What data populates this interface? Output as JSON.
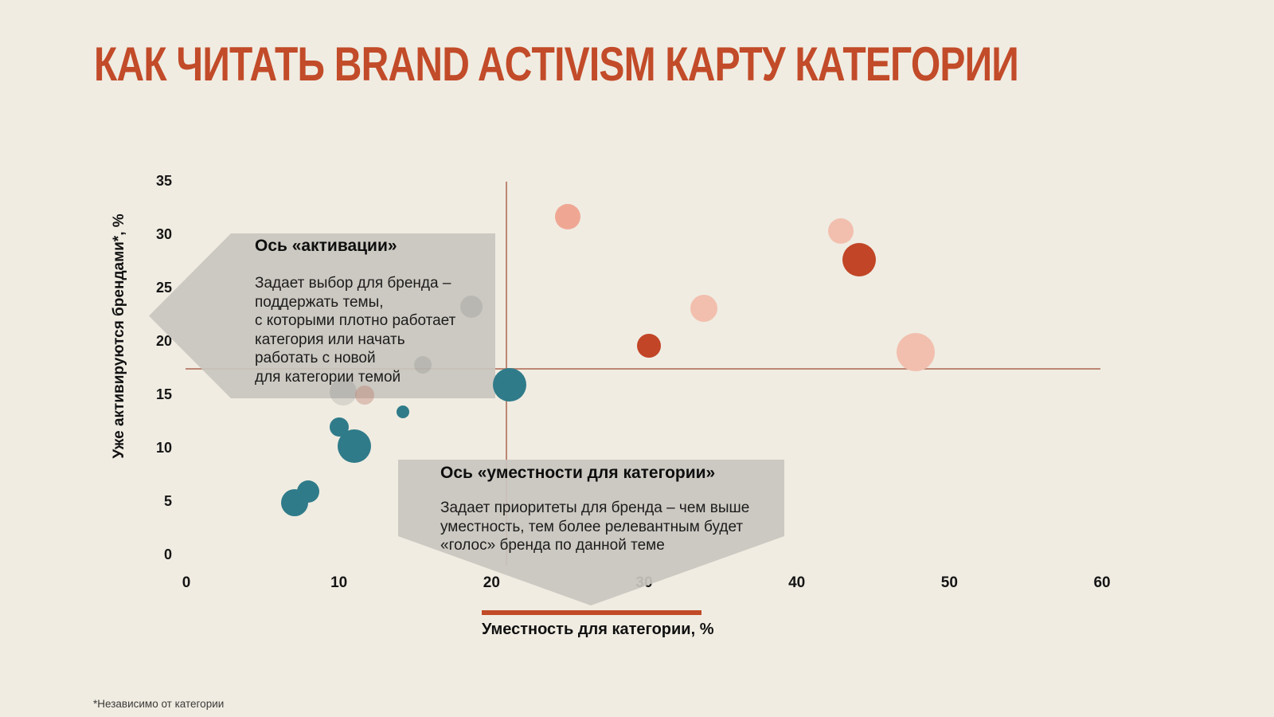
{
  "title": "КАК ЧИТАТЬ BRAND ACTIVISM КАРТУ КАТЕГОРИИ",
  "footnote": "*Независимо от категории",
  "axes": {
    "y_title": "Уже активируются брендами*, %",
    "x_title": "Уместность для категории, %",
    "y_ticks": [
      0,
      5,
      10,
      15,
      20,
      25,
      30,
      35
    ],
    "x_ticks": [
      0,
      10,
      20,
      30,
      40,
      50,
      60
    ]
  },
  "callouts": {
    "activation": {
      "title": "Ось «активации»",
      "body": "Задает выбор для бренда –\nподдержать темы,\nс которыми плотно работает\nкатегория или начать\nработать с новой\nдля категории темой"
    },
    "relevance": {
      "title": "Ось «уместности для категории»",
      "body": "Задает приоритеты для бренда – чем выше\nуместность, тем более релевантным будет\n«голос» бренда по данной теме"
    }
  },
  "colors": {
    "background": "#f0ece2",
    "title": "#c24b29",
    "teal": "#2f7b89",
    "orange": "#c14526",
    "pink": "#f2bfae",
    "salmon": "#efa794",
    "muted_gray": "rgba(90,95,92,0.16)",
    "muted_pink": "rgba(186,120,105,0.38)",
    "crosshair": "#b4765f",
    "underline": "#c14b27",
    "callout_fill": "rgba(201,198,191,0.92)"
  },
  "chart_data": {
    "type": "scatter",
    "x_range": [
      0,
      60
    ],
    "y_range": [
      0,
      35
    ],
    "grid": false,
    "crosshair": {
      "x": 21,
      "y": 17.5
    },
    "bubbles": [
      {
        "x": 18.7,
        "y": 23.3,
        "r": 14,
        "color": "muted_gray"
      },
      {
        "x": 15.5,
        "y": 17.8,
        "r": 11,
        "color": "muted_gray"
      },
      {
        "x": 10.3,
        "y": 15.3,
        "r": 17,
        "color": "muted_gray"
      },
      {
        "x": 11.7,
        "y": 15.0,
        "r": 12,
        "color": "muted_pink"
      },
      {
        "x": 21.2,
        "y": 16.0,
        "r": 21,
        "color": "teal"
      },
      {
        "x": 14.2,
        "y": 13.4,
        "r": 8,
        "color": "teal"
      },
      {
        "x": 10.0,
        "y": 12.0,
        "r": 12,
        "color": "teal"
      },
      {
        "x": 11.0,
        "y": 10.2,
        "r": 21,
        "color": "teal"
      },
      {
        "x": 8.0,
        "y": 6.0,
        "r": 14,
        "color": "teal"
      },
      {
        "x": 7.1,
        "y": 4.9,
        "r": 17,
        "color": "teal"
      },
      {
        "x": 25.0,
        "y": 31.7,
        "r": 16,
        "color": "salmon"
      },
      {
        "x": 42.9,
        "y": 30.4,
        "r": 16,
        "color": "pink"
      },
      {
        "x": 44.1,
        "y": 27.7,
        "r": 21,
        "color": "orange"
      },
      {
        "x": 33.9,
        "y": 23.1,
        "r": 17,
        "color": "pink"
      },
      {
        "x": 30.3,
        "y": 19.6,
        "r": 15,
        "color": "orange"
      },
      {
        "x": 47.8,
        "y": 19.0,
        "r": 24,
        "color": "pink"
      }
    ]
  }
}
